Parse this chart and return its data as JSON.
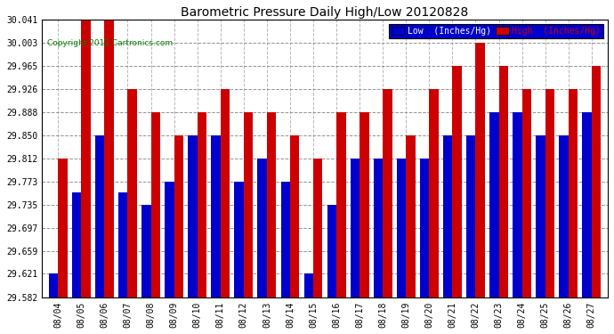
{
  "title": "Barometric Pressure Daily High/Low 20120828",
  "copyright": "Copyright 2012 Cartronics.com",
  "dates": [
    "08/04",
    "08/05",
    "08/06",
    "08/07",
    "08/08",
    "08/09",
    "08/10",
    "08/11",
    "08/12",
    "08/13",
    "08/14",
    "08/15",
    "08/16",
    "08/17",
    "08/18",
    "08/19",
    "08/20",
    "08/21",
    "08/22",
    "08/23",
    "08/24",
    "08/25",
    "08/26",
    "08/27"
  ],
  "low": [
    29.621,
    29.756,
    29.85,
    29.756,
    29.735,
    29.773,
    29.85,
    29.85,
    29.773,
    29.812,
    29.773,
    29.621,
    29.735,
    29.812,
    29.812,
    29.812,
    29.812,
    29.85,
    29.85,
    29.888,
    29.888,
    29.85,
    29.85,
    29.888
  ],
  "high": [
    29.812,
    30.041,
    30.041,
    29.926,
    29.888,
    29.85,
    29.888,
    29.926,
    29.888,
    29.888,
    29.85,
    29.812,
    29.888,
    29.888,
    29.926,
    29.85,
    29.926,
    29.965,
    30.003,
    29.965,
    29.926,
    29.926,
    29.926,
    29.965
  ],
  "ymin": 29.582,
  "ymax": 30.041,
  "yticks": [
    29.582,
    29.621,
    29.659,
    29.697,
    29.735,
    29.773,
    29.812,
    29.85,
    29.888,
    29.926,
    29.965,
    30.003,
    30.041
  ],
  "low_color": "#0000cc",
  "high_color": "#cc0000",
  "bg_color": "#ffffff",
  "grid_color": "#888888",
  "legend_low_label": "Low  (Inches/Hg)",
  "legend_high_label": "High  (Inches/Hg)"
}
